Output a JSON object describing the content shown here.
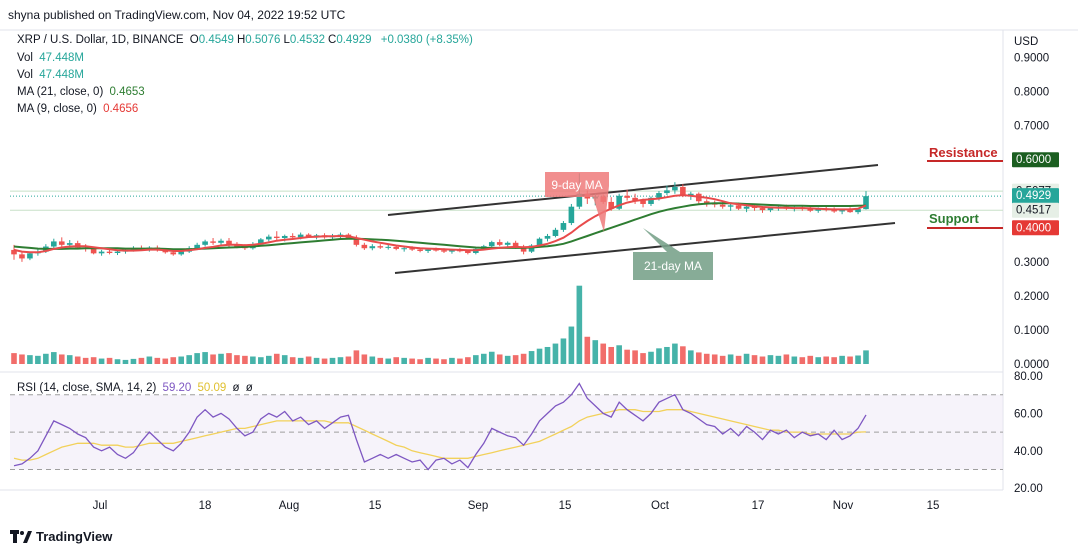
{
  "header": {
    "publish_text": "shyna published on TradingView.com, Nov 04, 2022 19:52 UTC"
  },
  "legend": {
    "symbol": "XRP / U.S. Dollar, 1D, BINANCE",
    "ohlc": [
      {
        "k": "O",
        "v": "0.4549"
      },
      {
        "k": "H",
        "v": "0.5076"
      },
      {
        "k": "L",
        "v": "0.4532"
      },
      {
        "k": "C",
        "v": "0.4929"
      }
    ],
    "change": "+0.0380 (+8.35%)",
    "vol_label": "Vol",
    "vol_value": "47.448M",
    "ma21_label": "MA (21, close, 0)",
    "ma21_value": "0.4653",
    "ma9_label": "MA (9, close, 0)",
    "ma9_value": "0.4656",
    "rsi_label": "RSI (14, close, SMA, 14, 2)",
    "rsi_value": "59.20",
    "rsi_sma_value": "50.09",
    "rsi_extra1": "ø",
    "rsi_extra2": "ø"
  },
  "currency": "USD",
  "colors": {
    "up": "#26a69a",
    "down": "#ef5350",
    "ma9": "#e84b4b",
    "ma21": "#2e7d32",
    "rsi": "#7e57c2",
    "rsi_sma": "#f2d15a",
    "resistance": "#c62828",
    "support": "#2e7d32",
    "trendline": "#333333"
  },
  "chart_data": {
    "type": "candlestick",
    "x_tick_labels": [
      "Jul",
      "18",
      "Aug",
      "15",
      "Sep",
      "15",
      "Oct",
      "17",
      "Nov",
      "15"
    ],
    "price_axis_labels": [
      "0.9000",
      "0.8000",
      "0.7000",
      "0.6000",
      "0.5077",
      "0.4929",
      "0.4517",
      "0.4000",
      "0.3000",
      "0.2000",
      "0.1000",
      "0.0000"
    ],
    "price_markers": [
      {
        "value": "0.6000",
        "color": "#1b5e20"
      },
      {
        "value": "0.5077",
        "color": "#e6efe6",
        "text_color": "#131722"
      },
      {
        "value": "0.4929",
        "sub": "04:07:12",
        "color": "#26a69a"
      },
      {
        "value": "0.4517",
        "color": "#e6efe6",
        "text_color": "#131722"
      },
      {
        "value": "0.4000",
        "color": "#e53935"
      }
    ],
    "annotations": {
      "resistance": "Resistance",
      "support": "Support",
      "ma9_callout": "9-day MA",
      "ma21_callout": "21-day MA"
    },
    "rsi_axis_labels": [
      "80.00",
      "60.00",
      "40.00",
      "20.00"
    ],
    "rsi_levels": [
      70,
      50,
      30
    ],
    "ohlc": [
      [
        0.335,
        0.35,
        0.306,
        0.322
      ],
      [
        0.322,
        0.33,
        0.3,
        0.31
      ],
      [
        0.31,
        0.33,
        0.305,
        0.325
      ],
      [
        0.325,
        0.34,
        0.318,
        0.33
      ],
      [
        0.33,
        0.352,
        0.326,
        0.345
      ],
      [
        0.345,
        0.368,
        0.34,
        0.36
      ],
      [
        0.36,
        0.372,
        0.345,
        0.35
      ],
      [
        0.35,
        0.364,
        0.342,
        0.355
      ],
      [
        0.355,
        0.362,
        0.338,
        0.342
      ],
      [
        0.342,
        0.352,
        0.33,
        0.338
      ],
      [
        0.338,
        0.345,
        0.322,
        0.325
      ],
      [
        0.325,
        0.335,
        0.318,
        0.33
      ],
      [
        0.33,
        0.338,
        0.322,
        0.326
      ],
      [
        0.326,
        0.334,
        0.32,
        0.33
      ],
      [
        0.33,
        0.34,
        0.324,
        0.335
      ],
      [
        0.335,
        0.346,
        0.33,
        0.34
      ],
      [
        0.34,
        0.348,
        0.332,
        0.336
      ],
      [
        0.336,
        0.346,
        0.33,
        0.342
      ],
      [
        0.342,
        0.348,
        0.33,
        0.334
      ],
      [
        0.334,
        0.34,
        0.324,
        0.328
      ],
      [
        0.328,
        0.334,
        0.318,
        0.322
      ],
      [
        0.322,
        0.334,
        0.318,
        0.33
      ],
      [
        0.33,
        0.346,
        0.326,
        0.34
      ],
      [
        0.34,
        0.356,
        0.336,
        0.35
      ],
      [
        0.35,
        0.365,
        0.345,
        0.36
      ],
      [
        0.36,
        0.37,
        0.35,
        0.356
      ],
      [
        0.356,
        0.368,
        0.348,
        0.362
      ],
      [
        0.362,
        0.37,
        0.345,
        0.35
      ],
      [
        0.35,
        0.358,
        0.34,
        0.345
      ],
      [
        0.345,
        0.352,
        0.335,
        0.34
      ],
      [
        0.34,
        0.358,
        0.336,
        0.352
      ],
      [
        0.352,
        0.37,
        0.348,
        0.366
      ],
      [
        0.366,
        0.38,
        0.36,
        0.374
      ],
      [
        0.374,
        0.39,
        0.364,
        0.37
      ],
      [
        0.37,
        0.38,
        0.36,
        0.376
      ],
      [
        0.376,
        0.384,
        0.368,
        0.372
      ],
      [
        0.372,
        0.386,
        0.366,
        0.38
      ],
      [
        0.38,
        0.384,
        0.37,
        0.374
      ],
      [
        0.374,
        0.382,
        0.366,
        0.378
      ],
      [
        0.378,
        0.384,
        0.368,
        0.372
      ],
      [
        0.372,
        0.382,
        0.364,
        0.376
      ],
      [
        0.376,
        0.386,
        0.37,
        0.38
      ],
      [
        0.38,
        0.384,
        0.366,
        0.37
      ],
      [
        0.37,
        0.378,
        0.345,
        0.35
      ],
      [
        0.35,
        0.356,
        0.335,
        0.34
      ],
      [
        0.34,
        0.352,
        0.334,
        0.346
      ],
      [
        0.346,
        0.352,
        0.338,
        0.342
      ],
      [
        0.342,
        0.35,
        0.336,
        0.344
      ],
      [
        0.344,
        0.35,
        0.334,
        0.338
      ],
      [
        0.338,
        0.346,
        0.33,
        0.34
      ],
      [
        0.34,
        0.346,
        0.332,
        0.336
      ],
      [
        0.336,
        0.342,
        0.328,
        0.332
      ],
      [
        0.332,
        0.34,
        0.326,
        0.336
      ],
      [
        0.336,
        0.342,
        0.33,
        0.334
      ],
      [
        0.334,
        0.34,
        0.326,
        0.33
      ],
      [
        0.33,
        0.338,
        0.324,
        0.334
      ],
      [
        0.334,
        0.34,
        0.328,
        0.332
      ],
      [
        0.332,
        0.336,
        0.322,
        0.326
      ],
      [
        0.326,
        0.34,
        0.322,
        0.338
      ],
      [
        0.338,
        0.35,
        0.334,
        0.346
      ],
      [
        0.346,
        0.362,
        0.342,
        0.358
      ],
      [
        0.358,
        0.366,
        0.346,
        0.35
      ],
      [
        0.35,
        0.36,
        0.344,
        0.356
      ],
      [
        0.356,
        0.362,
        0.338,
        0.342
      ],
      [
        0.342,
        0.35,
        0.322,
        0.33
      ],
      [
        0.33,
        0.352,
        0.326,
        0.348
      ],
      [
        0.348,
        0.372,
        0.344,
        0.368
      ],
      [
        0.368,
        0.382,
        0.36,
        0.376
      ],
      [
        0.376,
        0.4,
        0.372,
        0.394
      ],
      [
        0.394,
        0.42,
        0.388,
        0.414
      ],
      [
        0.414,
        0.47,
        0.408,
        0.462
      ],
      [
        0.462,
        0.56,
        0.455,
        0.5
      ],
      [
        0.5,
        0.51,
        0.47,
        0.486
      ],
      [
        0.486,
        0.5,
        0.466,
        0.492
      ],
      [
        0.492,
        0.498,
        0.47,
        0.476
      ],
      [
        0.476,
        0.49,
        0.45,
        0.456
      ],
      [
        0.456,
        0.5,
        0.452,
        0.494
      ],
      [
        0.494,
        0.512,
        0.48,
        0.488
      ],
      [
        0.488,
        0.5,
        0.47,
        0.48
      ],
      [
        0.48,
        0.486,
        0.46,
        0.47
      ],
      [
        0.47,
        0.492,
        0.464,
        0.488
      ],
      [
        0.488,
        0.508,
        0.48,
        0.502
      ],
      [
        0.502,
        0.524,
        0.496,
        0.51
      ],
      [
        0.51,
        0.534,
        0.5,
        0.52
      ],
      [
        0.52,
        0.528,
        0.49,
        0.496
      ],
      [
        0.496,
        0.506,
        0.482,
        0.5
      ],
      [
        0.5,
        0.504,
        0.47,
        0.478
      ],
      [
        0.478,
        0.484,
        0.462,
        0.472
      ],
      [
        0.472,
        0.48,
        0.46,
        0.468
      ],
      [
        0.468,
        0.476,
        0.456,
        0.462
      ],
      [
        0.462,
        0.472,
        0.45,
        0.466
      ],
      [
        0.466,
        0.474,
        0.452,
        0.456
      ],
      [
        0.456,
        0.468,
        0.446,
        0.462
      ],
      [
        0.462,
        0.47,
        0.45,
        0.458
      ],
      [
        0.458,
        0.464,
        0.444,
        0.452
      ],
      [
        0.452,
        0.462,
        0.446,
        0.458
      ],
      [
        0.458,
        0.466,
        0.45,
        0.462
      ],
      [
        0.462,
        0.468,
        0.452,
        0.456
      ],
      [
        0.456,
        0.464,
        0.448,
        0.46
      ],
      [
        0.46,
        0.466,
        0.45,
        0.456
      ],
      [
        0.456,
        0.462,
        0.446,
        0.45
      ],
      [
        0.45,
        0.46,
        0.444,
        0.456
      ],
      [
        0.456,
        0.462,
        0.448,
        0.452
      ],
      [
        0.452,
        0.46,
        0.444,
        0.448
      ],
      [
        0.448,
        0.456,
        0.44,
        0.452
      ],
      [
        0.452,
        0.46,
        0.444,
        0.446
      ],
      [
        0.446,
        0.458,
        0.44,
        0.455
      ],
      [
        0.4549,
        0.5076,
        0.4532,
        0.4929
      ]
    ],
    "ma9": [
      0.335,
      0.33,
      0.328,
      0.328,
      0.332,
      0.338,
      0.342,
      0.345,
      0.346,
      0.346,
      0.343,
      0.34,
      0.337,
      0.334,
      0.333,
      0.333,
      0.334,
      0.336,
      0.336,
      0.334,
      0.332,
      0.332,
      0.334,
      0.337,
      0.341,
      0.344,
      0.348,
      0.35,
      0.35,
      0.349,
      0.35,
      0.353,
      0.357,
      0.362,
      0.365,
      0.367,
      0.37,
      0.373,
      0.374,
      0.375,
      0.375,
      0.376,
      0.375,
      0.37,
      0.365,
      0.36,
      0.356,
      0.352,
      0.348,
      0.345,
      0.342,
      0.34,
      0.339,
      0.338,
      0.337,
      0.336,
      0.335,
      0.334,
      0.334,
      0.336,
      0.339,
      0.341,
      0.343,
      0.344,
      0.343,
      0.344,
      0.348,
      0.353,
      0.361,
      0.371,
      0.386,
      0.404,
      0.42,
      0.434,
      0.446,
      0.456,
      0.466,
      0.474,
      0.479,
      0.482,
      0.484,
      0.486,
      0.49,
      0.494,
      0.496,
      0.494,
      0.491,
      0.488,
      0.484,
      0.478,
      0.472,
      0.469,
      0.466,
      0.463,
      0.461,
      0.46,
      0.459,
      0.459,
      0.458,
      0.458,
      0.457,
      0.456,
      0.455,
      0.454,
      0.454,
      0.454,
      0.456,
      0.4656
    ],
    "ma21": [
      0.345,
      0.343,
      0.341,
      0.339,
      0.338,
      0.338,
      0.338,
      0.339,
      0.339,
      0.34,
      0.34,
      0.34,
      0.34,
      0.34,
      0.339,
      0.339,
      0.339,
      0.339,
      0.339,
      0.338,
      0.337,
      0.337,
      0.337,
      0.338,
      0.339,
      0.34,
      0.341,
      0.342,
      0.343,
      0.344,
      0.345,
      0.347,
      0.349,
      0.351,
      0.353,
      0.355,
      0.357,
      0.359,
      0.361,
      0.363,
      0.365,
      0.367,
      0.368,
      0.368,
      0.367,
      0.366,
      0.365,
      0.364,
      0.362,
      0.36,
      0.358,
      0.356,
      0.354,
      0.352,
      0.35,
      0.348,
      0.346,
      0.344,
      0.342,
      0.341,
      0.341,
      0.341,
      0.341,
      0.341,
      0.341,
      0.342,
      0.344,
      0.346,
      0.349,
      0.353,
      0.36,
      0.368,
      0.376,
      0.384,
      0.392,
      0.4,
      0.408,
      0.416,
      0.424,
      0.432,
      0.44,
      0.447,
      0.453,
      0.458,
      0.462,
      0.466,
      0.469,
      0.471,
      0.472,
      0.472,
      0.472,
      0.471,
      0.47,
      0.469,
      0.468,
      0.467,
      0.466,
      0.465,
      0.465,
      0.465,
      0.464,
      0.464,
      0.464,
      0.464,
      0.464,
      0.464,
      0.465,
      0.4653
    ],
    "volume": [
      0.032,
      0.028,
      0.026,
      0.024,
      0.03,
      0.035,
      0.028,
      0.026,
      0.022,
      0.018,
      0.02,
      0.016,
      0.018,
      0.014,
      0.012,
      0.015,
      0.018,
      0.022,
      0.018,
      0.016,
      0.02,
      0.022,
      0.026,
      0.032,
      0.035,
      0.028,
      0.03,
      0.032,
      0.026,
      0.024,
      0.022,
      0.02,
      0.024,
      0.03,
      0.026,
      0.02,
      0.018,
      0.022,
      0.018,
      0.016,
      0.018,
      0.02,
      0.022,
      0.04,
      0.028,
      0.022,
      0.018,
      0.016,
      0.02,
      0.018,
      0.016,
      0.014,
      0.018,
      0.016,
      0.014,
      0.018,
      0.016,
      0.02,
      0.026,
      0.03,
      0.036,
      0.028,
      0.024,
      0.026,
      0.03,
      0.038,
      0.045,
      0.05,
      0.06,
      0.075,
      0.11,
      0.23,
      0.08,
      0.07,
      0.06,
      0.05,
      0.055,
      0.042,
      0.04,
      0.032,
      0.036,
      0.046,
      0.05,
      0.06,
      0.052,
      0.04,
      0.034,
      0.03,
      0.028,
      0.024,
      0.028,
      0.024,
      0.03,
      0.026,
      0.022,
      0.026,
      0.024,
      0.028,
      0.022,
      0.02,
      0.024,
      0.02,
      0.022,
      0.02,
      0.024,
      0.022,
      0.025,
      0.04
    ],
    "rsi": [
      32,
      33,
      36,
      40,
      48,
      56,
      54,
      52,
      49,
      47,
      42,
      40,
      42,
      38,
      36,
      39,
      45,
      50,
      46,
      42,
      40,
      44,
      50,
      58,
      62,
      58,
      60,
      57,
      52,
      48,
      50,
      57,
      60,
      58,
      61,
      56,
      58,
      54,
      56,
      52,
      55,
      58,
      59,
      46,
      34,
      36,
      38,
      36,
      38,
      36,
      34,
      35,
      30,
      35,
      36,
      33,
      35,
      31,
      38,
      44,
      52,
      50,
      48,
      47,
      43,
      49,
      56,
      60,
      64,
      66,
      70,
      76,
      68,
      64,
      60,
      58,
      66,
      62,
      59,
      56,
      60,
      66,
      68,
      70,
      62,
      60,
      57,
      54,
      53,
      49,
      52,
      48,
      53,
      50,
      46,
      51,
      49,
      51,
      47,
      50,
      48,
      49,
      46,
      51,
      46,
      48,
      52,
      59.2
    ],
    "rsi_sma": [
      36,
      35,
      35,
      36,
      38,
      40,
      42,
      43,
      44,
      44,
      44,
      43,
      43,
      43,
      42,
      42,
      43,
      44,
      44,
      44,
      44,
      45,
      46,
      47,
      48,
      49,
      50,
      51,
      52,
      52,
      53,
      54,
      55,
      56,
      56,
      56,
      56,
      56,
      56,
      56,
      55,
      55,
      55,
      53,
      51,
      49,
      47,
      45,
      43,
      42,
      40,
      39,
      38,
      37,
      36,
      36,
      36,
      36,
      37,
      38,
      39,
      40,
      41,
      42,
      43,
      44,
      45,
      47,
      49,
      51,
      53,
      56,
      58,
      59,
      60,
      61,
      62,
      62,
      62,
      61,
      61,
      61,
      62,
      62,
      62,
      61,
      60,
      59,
      58,
      57,
      56,
      55,
      54,
      53,
      52,
      51,
      51,
      50,
      50,
      50,
      49,
      49,
      49,
      49,
      49,
      49,
      50,
      50.09
    ]
  }
}
